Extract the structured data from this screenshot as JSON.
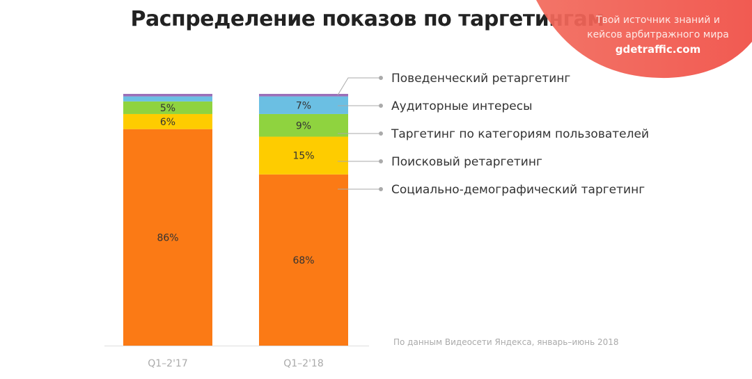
{
  "chart_data": {
    "type": "bar",
    "stacked": true,
    "title": "Распределение показов по таргетингам",
    "categories": [
      "Q1–2'17",
      "Q1–2'18"
    ],
    "series": [
      {
        "name": "Социально-демографический таргетинг",
        "color": "#fb7a15",
        "values": [
          86,
          68
        ],
        "labels": [
          "86%",
          "68%"
        ]
      },
      {
        "name": "Поисковый ретаргетинг",
        "color": "#fecc00",
        "values": [
          6,
          15
        ],
        "labels": [
          "6%",
          "15%"
        ]
      },
      {
        "name": "Таргетинг по категориям пользователей",
        "color": "#8fd33f",
        "values": [
          5,
          9
        ],
        "labels": [
          "5%",
          "9%"
        ]
      },
      {
        "name": "Аудиторные интересы",
        "color": "#6bbfe3",
        "values": [
          2,
          7
        ],
        "labels": [
          "",
          "7%"
        ]
      },
      {
        "name": "Поведенческий ретаргетинг",
        "color": "#9b6fb8",
        "values": [
          1,
          1
        ],
        "labels": [
          "",
          ""
        ]
      }
    ],
    "ylim": [
      0,
      100
    ],
    "grid": false,
    "legend": "right",
    "source": "По данным Видеосети Яндекса, январь–июнь 2018"
  },
  "watermark": {
    "line1": "Твой источник знаний и",
    "line2": "кейсов арбитражного мира",
    "site": "gdetraffic.com"
  }
}
